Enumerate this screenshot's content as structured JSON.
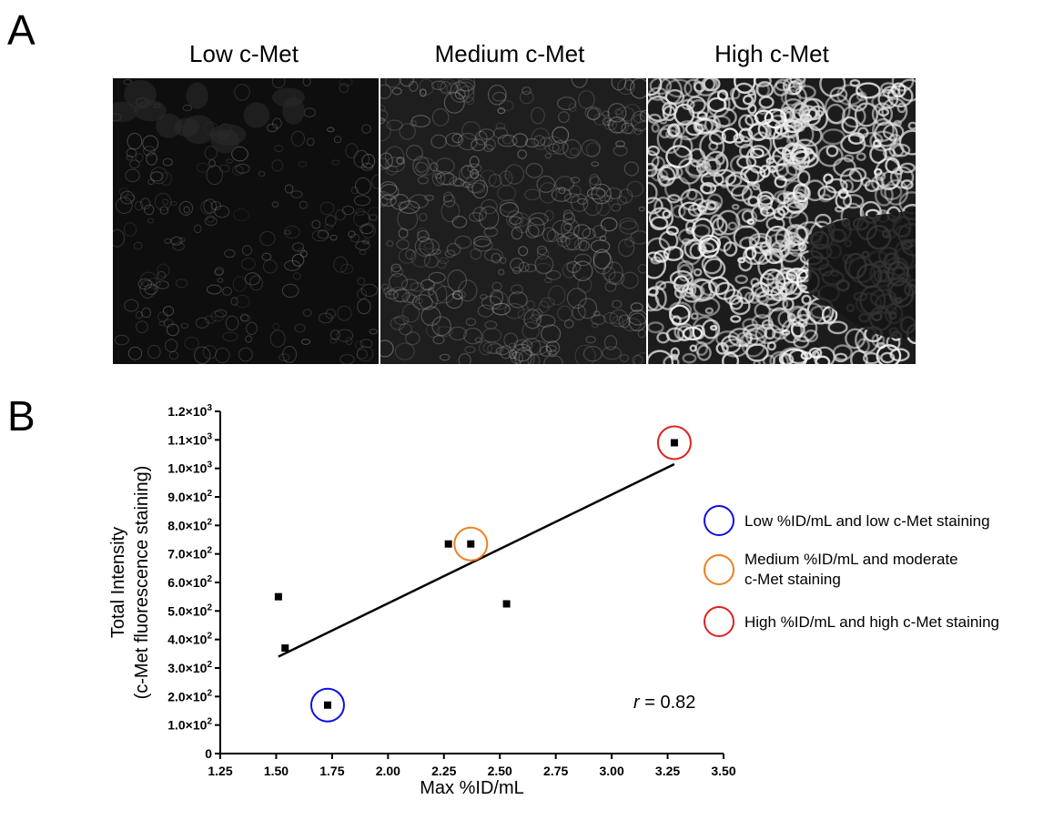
{
  "panel_a": {
    "letter": "A",
    "images": [
      {
        "title": "Low c-Met",
        "level": "low"
      },
      {
        "title": "Medium c-Met",
        "level": "medium"
      },
      {
        "title": "High c-Met",
        "level": "high"
      }
    ]
  },
  "panel_b": {
    "letter": "B"
  },
  "chart_data": {
    "type": "scatter",
    "xlabel": "Max %ID/mL",
    "ylabel_line1": "Total Intensity",
    "ylabel_line2": "(c-Met fluorescence staining)",
    "xlim": [
      1.25,
      3.5
    ],
    "ylim": [
      0,
      1200
    ],
    "x_ticks": [
      "1.25",
      "1.50",
      "1.75",
      "2.00",
      "2.25",
      "2.50",
      "2.75",
      "3.00",
      "3.25",
      "3.50"
    ],
    "y_ticks": [
      {
        "value": 0,
        "mant": "0",
        "exp": ""
      },
      {
        "value": 100,
        "mant": "1.0×10",
        "exp": "2"
      },
      {
        "value": 200,
        "mant": "2.0×10",
        "exp": "2"
      },
      {
        "value": 300,
        "mant": "3.0×10",
        "exp": "2"
      },
      {
        "value": 400,
        "mant": "4.0×10",
        "exp": "2"
      },
      {
        "value": 500,
        "mant": "5.0×10",
        "exp": "2"
      },
      {
        "value": 600,
        "mant": "6.0×10",
        "exp": "2"
      },
      {
        "value": 700,
        "mant": "7.0×10",
        "exp": "2"
      },
      {
        "value": 800,
        "mant": "8.0×10",
        "exp": "2"
      },
      {
        "value": 900,
        "mant": "9.0×10",
        "exp": "2"
      },
      {
        "value": 1000,
        "mant": "1.0×10",
        "exp": "3"
      },
      {
        "value": 1100,
        "mant": "1.1×10",
        "exp": "3"
      },
      {
        "value": 1200,
        "mant": "1.2×10",
        "exp": "3"
      }
    ],
    "points": [
      {
        "x": 1.51,
        "y": 550
      },
      {
        "x": 1.54,
        "y": 370
      },
      {
        "x": 1.73,
        "y": 170,
        "highlight": "#1010e0"
      },
      {
        "x": 2.27,
        "y": 735
      },
      {
        "x": 2.37,
        "y": 735,
        "highlight": "#f07f1f"
      },
      {
        "x": 2.53,
        "y": 525
      },
      {
        "x": 3.28,
        "y": 1090,
        "highlight": "#e02020"
      }
    ],
    "fit_line": {
      "x": [
        1.51,
        3.28
      ],
      "y": [
        340,
        1015
      ]
    },
    "annotation_r": "r",
    "annotation_value": " = 0.82",
    "legend": [
      {
        "color": "#1010e0",
        "lines": [
          "Low %ID/mL and low c-Met staining"
        ]
      },
      {
        "color": "#f07f1f",
        "lines": [
          "Medium %ID/mL and moderate",
          "c-Met staining"
        ]
      },
      {
        "color": "#e02020",
        "lines": [
          "High %ID/mL and high c-Met staining"
        ]
      }
    ]
  }
}
